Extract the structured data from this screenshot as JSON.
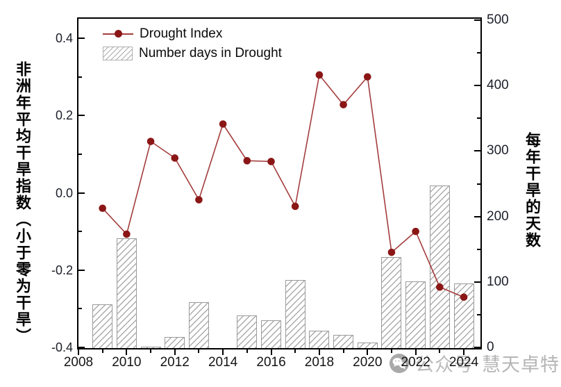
{
  "chart_data": {
    "type": "line+bar",
    "title": "",
    "x_years": [
      2009,
      2010,
      2011,
      2012,
      2013,
      2014,
      2015,
      2016,
      2017,
      2018,
      2019,
      2020,
      2021,
      2022,
      2023,
      2024
    ],
    "series": [
      {
        "name": "Drought Index",
        "type": "line",
        "axis": "left",
        "values": [
          -0.04,
          -0.107,
          0.133,
          0.09,
          -0.018,
          0.178,
          0.083,
          0.081,
          -0.035,
          0.305,
          0.228,
          0.3,
          -0.154,
          -0.1,
          -0.244,
          -0.27
        ]
      },
      {
        "name": "Number days in Drought",
        "type": "bar",
        "axis": "right",
        "values": [
          67,
          168,
          2,
          17,
          70,
          0,
          50,
          42,
          104,
          27,
          20,
          8,
          139,
          102,
          248,
          99
        ]
      }
    ],
    "left_axis": {
      "title": "非洲年平均干旱指数（小于零为干旱）",
      "major_ticks": [
        0.4,
        0.2,
        0.0,
        -0.2,
        -0.4
      ],
      "minor_ticks": [
        0.3,
        0.1,
        -0.1,
        -0.3
      ],
      "range": [
        -0.403,
        0.45
      ]
    },
    "right_axis": {
      "title": "每年干旱的天数",
      "major_ticks": [
        500,
        400,
        300,
        200,
        100,
        0
      ],
      "minor_ticks": [
        450,
        350,
        250,
        150,
        50
      ],
      "range": [
        0,
        503
      ]
    },
    "x_axis": {
      "major_ticks": [
        2008,
        2010,
        2012,
        2014,
        2016,
        2018,
        2020,
        2022,
        2024
      ],
      "minor_ticks": [
        2009,
        2011,
        2013,
        2015,
        2017,
        2019,
        2021,
        2023
      ],
      "range": [
        2008,
        2024.7
      ]
    },
    "legend_position": "top-left-inside",
    "grid": "off",
    "colors": {
      "line": "#a33c3c",
      "marker": "#8b1616",
      "bar_border": "#9a9a9a",
      "bar_hatch": "#ababab",
      "axis": "#000000"
    }
  },
  "legend": {
    "items": [
      {
        "label": "Drought Index",
        "swatch": "line-with-marker"
      },
      {
        "label": "Number days in Drought",
        "swatch": "hatched-box"
      }
    ]
  },
  "watermark": {
    "logo": "wechat-icon",
    "brand": "公众号",
    "name": "慧天卓特"
  }
}
